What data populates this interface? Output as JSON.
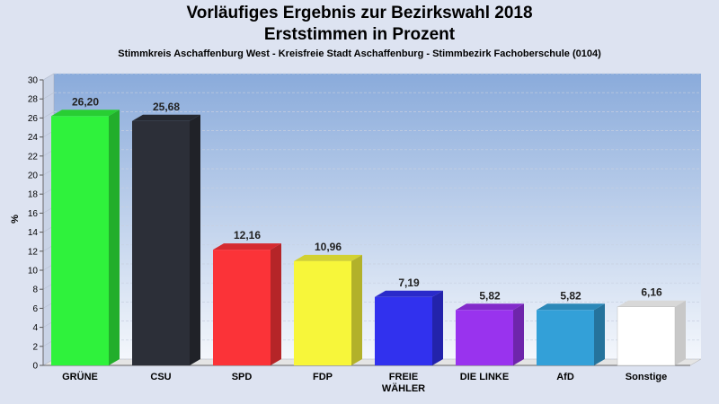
{
  "chart_data": {
    "type": "bar",
    "title": "Vorläufiges Ergebnis zur Bezirkswahl 2018",
    "subtitle": "Erststimmen in Prozent",
    "caption": "Stimmkreis Aschaffenburg West - Kreisfreie Stadt Aschaffenburg - Stimmbezirk Fachoberschule (0104)",
    "xlabel": "",
    "ylabel": "%",
    "ylim": [
      0,
      30
    ],
    "yticks": [
      "0",
      "2",
      "4",
      "6",
      "8",
      "10",
      "12",
      "14",
      "16",
      "18",
      "20",
      "22",
      "24",
      "26",
      "28",
      "30"
    ],
    "grid": true,
    "categories": [
      "GRÜNE",
      "CSU",
      "SPD",
      "FDP",
      "FREIE WÄHLER",
      "DIE LINKE",
      "AfD",
      "Sonstige"
    ],
    "category_lines": [
      [
        "GRÜNE"
      ],
      [
        "CSU"
      ],
      [
        "SPD"
      ],
      [
        "FDP"
      ],
      [
        "FREIE",
        "WÄHLER"
      ],
      [
        "DIE LINKE"
      ],
      [
        "AfD"
      ],
      [
        "Sonstige"
      ]
    ],
    "values": [
      26.2,
      25.68,
      12.16,
      10.96,
      7.19,
      5.82,
      5.82,
      6.16
    ],
    "value_labels": [
      "26,20",
      "25,68",
      "12,16",
      "10,96",
      "7,19",
      "5,82",
      "5,82",
      "6,16"
    ],
    "colors": [
      "#2ff23c",
      "#2c2f38",
      "#fb3338",
      "#f7f63a",
      "#3131ee",
      "#9933ee",
      "#33a0d8",
      "#ffffff"
    ]
  }
}
